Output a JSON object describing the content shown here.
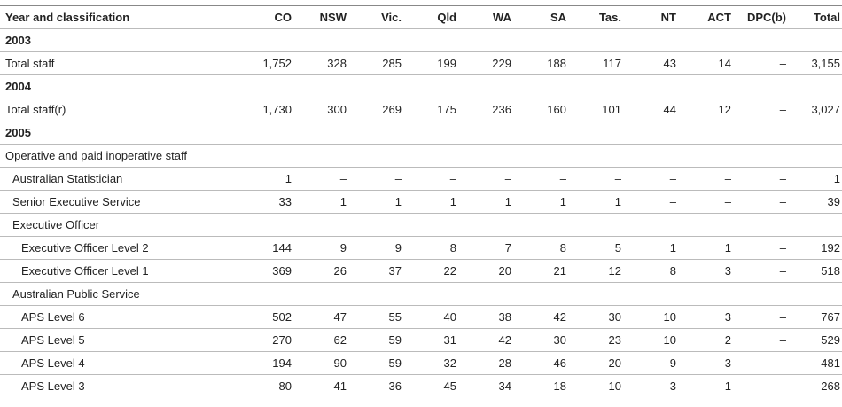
{
  "table": {
    "columns": [
      "Year and classification",
      "CO",
      "NSW",
      "Vic.",
      "Qld",
      "WA",
      "SA",
      "Tas.",
      "NT",
      "ACT",
      "DPC(b)",
      "Total"
    ],
    "sections": [
      {
        "title": "2003",
        "rows": [
          {
            "label": "Total staff",
            "level": 0,
            "values": [
              "1,752",
              "328",
              "285",
              "199",
              "229",
              "188",
              "117",
              "43",
              "14",
              "–",
              "3,155"
            ]
          }
        ]
      },
      {
        "title": "2004",
        "rows": [
          {
            "label": "Total staff(r)",
            "level": 0,
            "values": [
              "1,730",
              "300",
              "269",
              "175",
              "236",
              "160",
              "101",
              "44",
              "12",
              "–",
              "3,027"
            ]
          }
        ]
      },
      {
        "title": "2005",
        "rows": [
          {
            "label": "Operative and paid inoperative staff",
            "level": 0
          },
          {
            "label": "Australian Statistician",
            "level": 1,
            "values": [
              "1",
              "–",
              "–",
              "–",
              "–",
              "–",
              "–",
              "–",
              "–",
              "–",
              "1"
            ]
          },
          {
            "label": "Senior Executive Service",
            "level": 1,
            "values": [
              "33",
              "1",
              "1",
              "1",
              "1",
              "1",
              "1",
              "–",
              "–",
              "–",
              "39"
            ]
          },
          {
            "label": "Executive Officer",
            "level": 1
          },
          {
            "label": "Executive Officer Level 2",
            "level": 2,
            "values": [
              "144",
              "9",
              "9",
              "8",
              "7",
              "8",
              "5",
              "1",
              "1",
              "–",
              "192"
            ]
          },
          {
            "label": "Executive Officer Level 1",
            "level": 2,
            "values": [
              "369",
              "26",
              "37",
              "22",
              "20",
              "21",
              "12",
              "8",
              "3",
              "–",
              "518"
            ]
          },
          {
            "label": "Australian Public Service",
            "level": 1
          },
          {
            "label": "APS Level 6",
            "level": 2,
            "values": [
              "502",
              "47",
              "55",
              "40",
              "38",
              "42",
              "30",
              "10",
              "3",
              "–",
              "767"
            ]
          },
          {
            "label": "APS Level 5",
            "level": 2,
            "values": [
              "270",
              "62",
              "59",
              "31",
              "42",
              "30",
              "23",
              "10",
              "2",
              "–",
              "529"
            ]
          },
          {
            "label": "APS Level 4",
            "level": 2,
            "values": [
              "194",
              "90",
              "59",
              "32",
              "28",
              "46",
              "20",
              "9",
              "3",
              "–",
              "481"
            ]
          },
          {
            "label": "APS Level 3",
            "level": 2,
            "values": [
              "80",
              "41",
              "36",
              "45",
              "34",
              "18",
              "10",
              "3",
              "1",
              "–",
              "268"
            ]
          }
        ]
      }
    ]
  }
}
